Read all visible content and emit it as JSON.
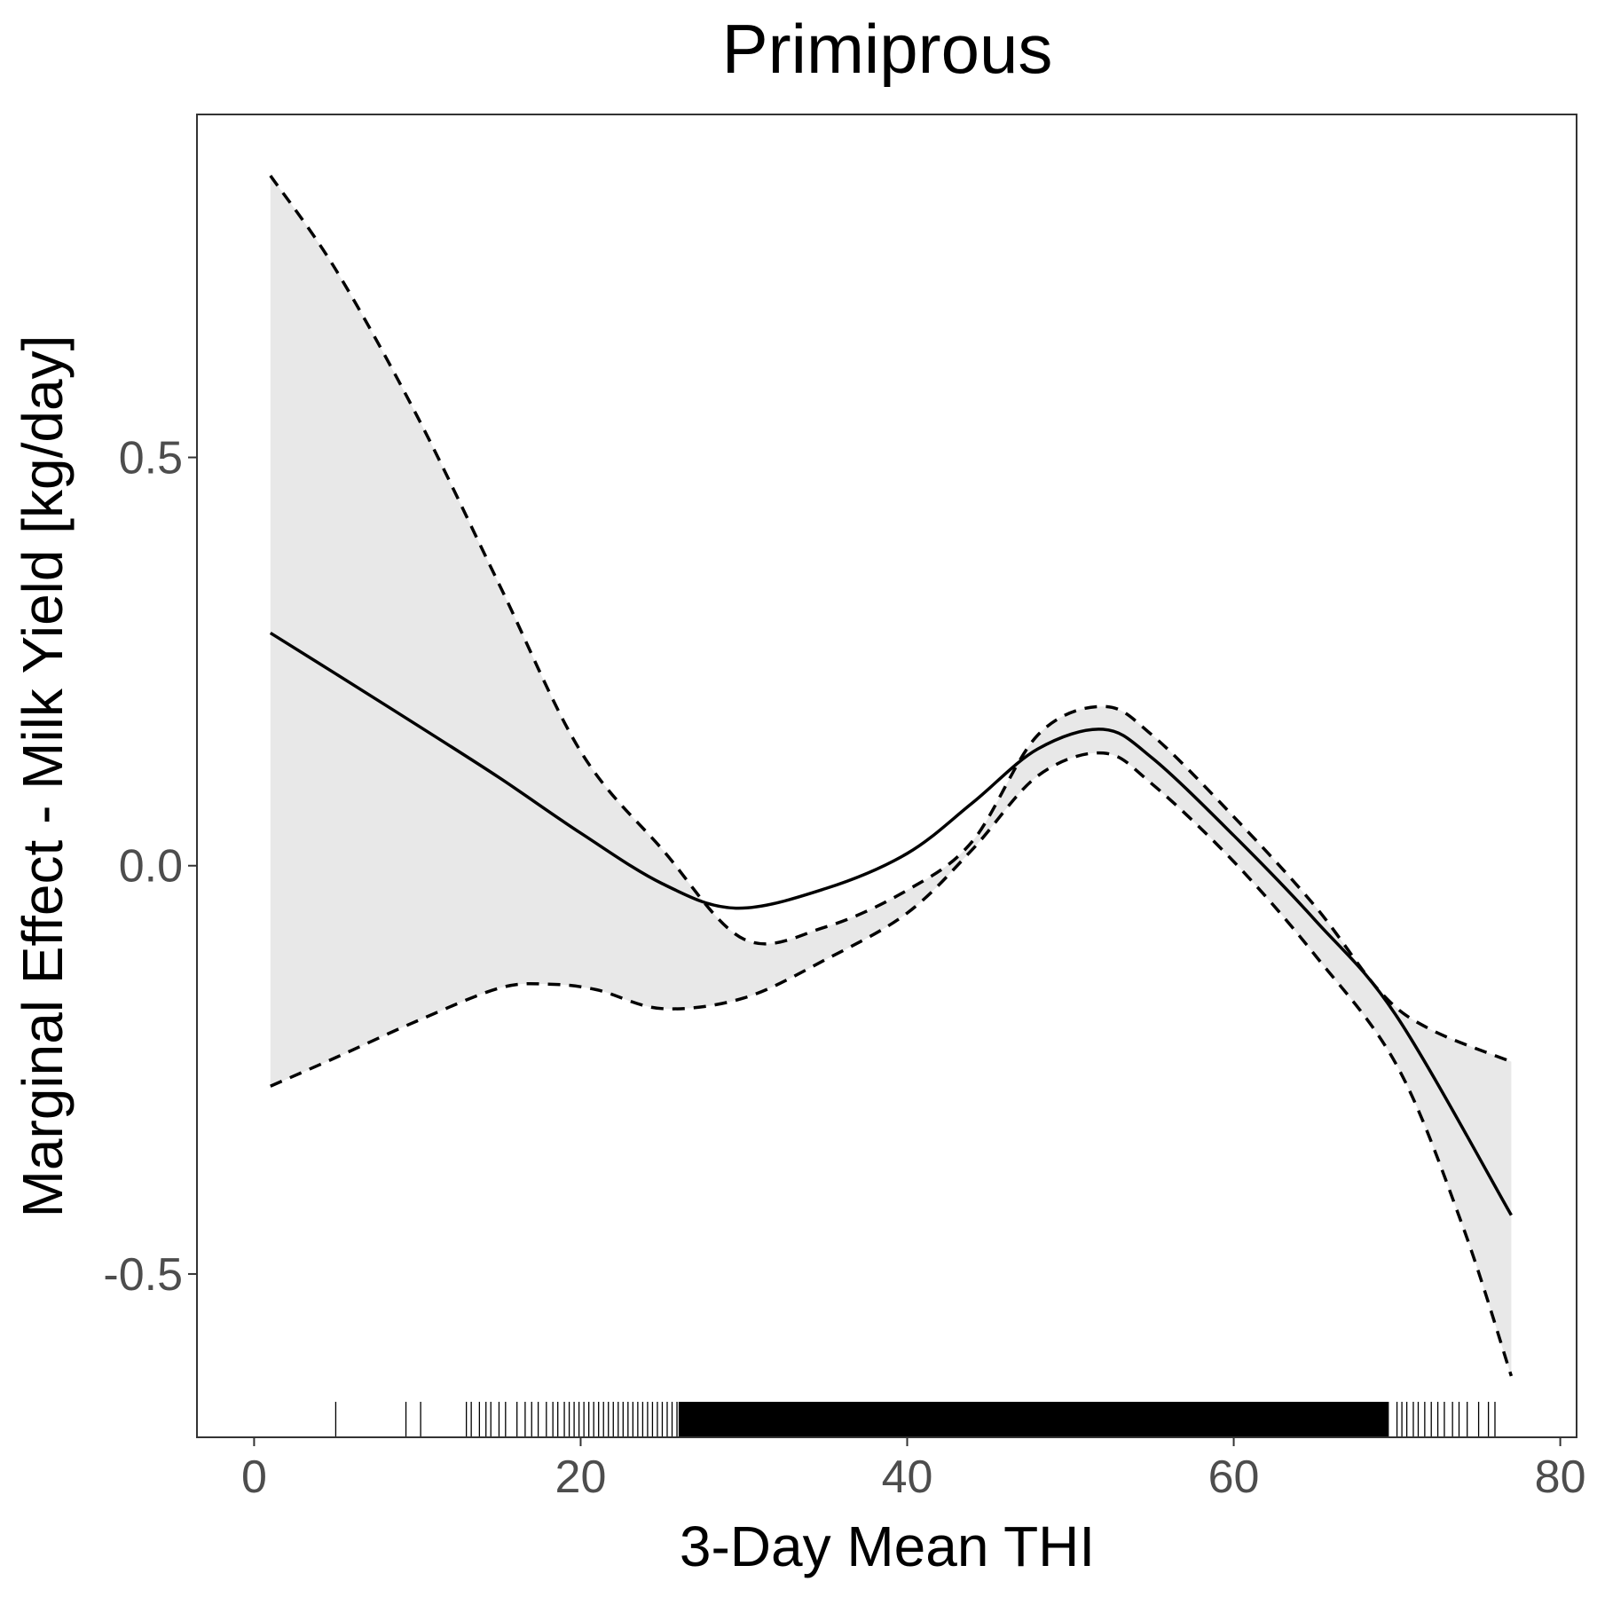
{
  "chart_data": {
    "type": "line",
    "title": "Primiprous",
    "xlabel": "3-Day Mean THI",
    "ylabel": "Marginal Effect - Milk Yield [kg/day]",
    "xlim": [
      -3.5,
      81
    ],
    "ylim": [
      -0.7,
      0.92
    ],
    "x_ticks": [
      0,
      20,
      40,
      60,
      80
    ],
    "x_tick_labels": [
      "0",
      "20",
      "40",
      "60",
      "80"
    ],
    "y_ticks": [
      0.5,
      0.0,
      -0.5
    ],
    "y_tick_labels": [
      "0.5",
      "0.0",
      "-0.5"
    ],
    "grid": false,
    "colors": {
      "line": "#000000",
      "ribbon": "#e8e8e8",
      "panel_border": "#333333",
      "tick_label": "#4d4d4d"
    },
    "series": [
      {
        "role": "estimate",
        "style": "solid",
        "x": [
          1,
          5,
          10,
          15,
          20,
          25,
          29.5,
          35,
          40,
          44,
          48,
          52,
          55,
          60,
          65,
          70,
          77
        ],
        "y": [
          0.285,
          0.235,
          0.172,
          0.108,
          0.04,
          -0.022,
          -0.052,
          -0.028,
          0.015,
          0.077,
          0.143,
          0.167,
          0.132,
          0.037,
          -0.067,
          -0.185,
          -0.428
        ]
      },
      {
        "role": "upper_confidence",
        "style": "dashed",
        "x": [
          1,
          5,
          10,
          15,
          20,
          25,
          30,
          35,
          40,
          44,
          48,
          52,
          55,
          60,
          65,
          69,
          72,
          77
        ],
        "y": [
          0.845,
          0.73,
          0.55,
          0.345,
          0.14,
          0.02,
          -0.09,
          -0.075,
          -0.03,
          0.03,
          0.16,
          0.195,
          0.16,
          0.06,
          -0.05,
          -0.155,
          -0.2,
          -0.24
        ]
      },
      {
        "role": "lower_confidence",
        "style": "dashed",
        "x": [
          1,
          5,
          10,
          15,
          18,
          21,
          25,
          30,
          35,
          40,
          44,
          48,
          52,
          55,
          60,
          65,
          70,
          74,
          77
        ],
        "y": [
          -0.27,
          -0.235,
          -0.19,
          -0.15,
          -0.145,
          -0.152,
          -0.175,
          -0.162,
          -0.115,
          -0.058,
          0.02,
          0.11,
          0.138,
          0.1,
          0.005,
          -0.11,
          -0.245,
          -0.44,
          -0.625
        ]
      }
    ],
    "rug": {
      "x": [
        5,
        9.3,
        10.2,
        13,
        13.3,
        13.8,
        14.2,
        14.5,
        15,
        15.4,
        16.1,
        16.6,
        17,
        17.4,
        17.9,
        18.3,
        18.6,
        19,
        19.3,
        19.6,
        19.9,
        20.2,
        20.5,
        20.8,
        21.1,
        21.4,
        21.7,
        22,
        22.3,
        22.6,
        22.9,
        23.2,
        23.5,
        23.8,
        24.1,
        24.4,
        24.7,
        25,
        25.3,
        25.6,
        25.9,
        70,
        70.3,
        70.6,
        71,
        71.3,
        71.7,
        72.1,
        72.5,
        72.9,
        73.4,
        73.8,
        74.3,
        75,
        75.6,
        76
      ],
      "dense_range": [
        26,
        69.5
      ]
    }
  }
}
